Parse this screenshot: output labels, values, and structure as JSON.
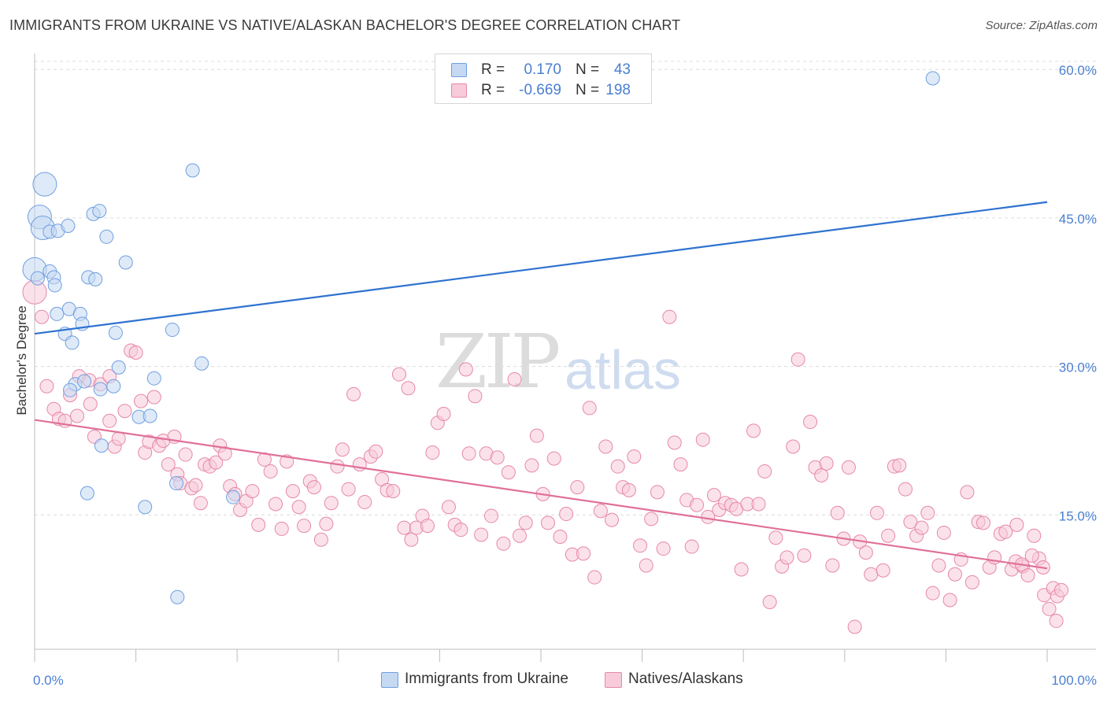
{
  "title": "IMMIGRANTS FROM UKRAINE VS NATIVE/ALASKAN BACHELOR'S DEGREE CORRELATION CHART",
  "source": "Source: ZipAtlas.com",
  "watermark": {
    "zip": "ZIP",
    "atlas": "atlas"
  },
  "legend": {
    "rows": [
      {
        "r_label": "R =",
        "r_value": "0.170",
        "n_label": "N =",
        "n_value": "43",
        "color": "#a9c6ec"
      },
      {
        "r_label": "R =",
        "r_value": "-0.669",
        "n_label": "N = ",
        "n_value": "198",
        "color": "#f4b6ca"
      }
    ]
  },
  "bottom_legend": [
    {
      "label": "Immigrants from Ukraine",
      "color": "#a9c6ec"
    },
    {
      "label": "Natives/Alaskans",
      "color": "#f4b6ca"
    }
  ],
  "chart_data": {
    "type": "scatter",
    "xlabel": "",
    "ylabel": "Bachelor's Degree",
    "xlim": [
      0,
      100
    ],
    "ylim": [
      0,
      65
    ],
    "x_tick_labels": [
      "0.0%",
      "100.0%"
    ],
    "y_ticks": [
      15,
      30,
      45,
      60
    ],
    "y_tick_labels": [
      "15.0%",
      "30.0%",
      "45.0%",
      "60.0%"
    ],
    "grid": "horizontal dashed",
    "legend_position": "top-center",
    "series": [
      {
        "name": "Immigrants from Ukraine",
        "color": "#6f9fe0",
        "fill": "#c5d9f3",
        "trend": {
          "x": [
            0,
            100
          ],
          "y": [
            33.3,
            46.6
          ]
        },
        "points": [
          [
            0,
            39.8
          ],
          [
            0.5,
            45.1
          ],
          [
            1,
            48.4
          ],
          [
            0.8,
            44.0
          ],
          [
            1.5,
            43.6
          ],
          [
            2.3,
            43.7
          ],
          [
            3.3,
            44.2
          ],
          [
            1.5,
            39.6
          ],
          [
            1.9,
            39.0
          ],
          [
            2,
            38.2
          ],
          [
            3.4,
            35.8
          ],
          [
            2.2,
            35.3
          ],
          [
            4.5,
            35.3
          ],
          [
            4.7,
            34.3
          ],
          [
            3,
            33.3
          ],
          [
            3.7,
            32.4
          ],
          [
            5.3,
            39.0
          ],
          [
            6,
            38.8
          ],
          [
            5.8,
            45.4
          ],
          [
            6.4,
            45.7
          ],
          [
            7.1,
            43.1
          ],
          [
            9,
            40.5
          ],
          [
            15.6,
            49.8
          ],
          [
            8,
            33.4
          ],
          [
            13.6,
            33.7
          ],
          [
            8.3,
            29.9
          ],
          [
            4,
            28.2
          ],
          [
            4.9,
            28.5
          ],
          [
            3.5,
            27.6
          ],
          [
            6.5,
            27.7
          ],
          [
            7.8,
            28.0
          ],
          [
            16.5,
            30.3
          ],
          [
            11.8,
            28.8
          ],
          [
            10.3,
            24.9
          ],
          [
            11.4,
            25.0
          ],
          [
            6.6,
            22.0
          ],
          [
            5.2,
            17.2
          ],
          [
            14,
            18.2
          ],
          [
            19.6,
            16.8
          ],
          [
            10.9,
            15.8
          ],
          [
            14.1,
            6.7
          ],
          [
            88.7,
            59.1
          ],
          [
            0.3,
            38.9
          ]
        ]
      },
      {
        "name": "Natives/Alaskans",
        "color": "#e688a8",
        "fill": "#f7cbd9",
        "trend": {
          "x": [
            0,
            100
          ],
          "y": [
            24.6,
            9.6
          ]
        },
        "points": [
          [
            0,
            37.5
          ],
          [
            0.7,
            35.0
          ],
          [
            1.2,
            28.0
          ],
          [
            1.9,
            25.7
          ],
          [
            2.4,
            24.7
          ],
          [
            3,
            24.5
          ],
          [
            3.5,
            27.1
          ],
          [
            4.2,
            25.0
          ],
          [
            4.4,
            29.0
          ],
          [
            5.4,
            28.6
          ],
          [
            5.5,
            26.2
          ],
          [
            5.9,
            22.9
          ],
          [
            6.5,
            28.2
          ],
          [
            7.4,
            24.5
          ],
          [
            7.4,
            29.0
          ],
          [
            7.9,
            21.9
          ],
          [
            8.3,
            22.7
          ],
          [
            8.9,
            25.5
          ],
          [
            9.5,
            31.6
          ],
          [
            10,
            31.4
          ],
          [
            10.5,
            26.5
          ],
          [
            10.9,
            21.3
          ],
          [
            11.3,
            22.4
          ],
          [
            11.8,
            26.9
          ],
          [
            12.3,
            22.0
          ],
          [
            12.7,
            22.5
          ],
          [
            13.2,
            20.1
          ],
          [
            13.8,
            22.9
          ],
          [
            14.1,
            19.1
          ],
          [
            14.4,
            18.2
          ],
          [
            14.9,
            21.1
          ],
          [
            15.5,
            17.7
          ],
          [
            15.9,
            18.0
          ],
          [
            16.4,
            16.2
          ],
          [
            16.8,
            20.1
          ],
          [
            17.3,
            19.9
          ],
          [
            17.9,
            20.3
          ],
          [
            18.3,
            22.0
          ],
          [
            18.8,
            21.2
          ],
          [
            19.3,
            17.9
          ],
          [
            19.8,
            17.1
          ],
          [
            20.3,
            15.5
          ],
          [
            20.9,
            16.4
          ],
          [
            21.5,
            17.4
          ],
          [
            22.1,
            14.0
          ],
          [
            22.7,
            20.6
          ],
          [
            23.3,
            19.4
          ],
          [
            23.8,
            16.1
          ],
          [
            24.4,
            13.6
          ],
          [
            24.9,
            20.4
          ],
          [
            25.5,
            17.4
          ],
          [
            26.1,
            15.8
          ],
          [
            26.6,
            13.9
          ],
          [
            27.2,
            18.4
          ],
          [
            27.6,
            17.8
          ],
          [
            28.3,
            12.5
          ],
          [
            28.8,
            14.1
          ],
          [
            29.3,
            16.2
          ],
          [
            29.9,
            19.9
          ],
          [
            30.4,
            21.6
          ],
          [
            31,
            17.6
          ],
          [
            31.5,
            27.2
          ],
          [
            32.1,
            20.1
          ],
          [
            32.6,
            16.3
          ],
          [
            33.2,
            20.9
          ],
          [
            33.7,
            21.4
          ],
          [
            34.3,
            18.6
          ],
          [
            34.8,
            17.5
          ],
          [
            35.4,
            17.4
          ],
          [
            36,
            29.2
          ],
          [
            36.5,
            13.7
          ],
          [
            36.9,
            27.8
          ],
          [
            37.2,
            12.5
          ],
          [
            37.7,
            13.7
          ],
          [
            38.3,
            14.9
          ],
          [
            38.8,
            13.9
          ],
          [
            39.3,
            21.3
          ],
          [
            39.8,
            24.3
          ],
          [
            40.4,
            25.2
          ],
          [
            40.9,
            15.8
          ],
          [
            41.5,
            14.0
          ],
          [
            42.1,
            13.5
          ],
          [
            42.6,
            29.7
          ],
          [
            42.9,
            21.2
          ],
          [
            43.5,
            27.0
          ],
          [
            44.1,
            13.0
          ],
          [
            44.6,
            21.2
          ],
          [
            45.1,
            14.9
          ],
          [
            45.7,
            20.8
          ],
          [
            46.3,
            12.1
          ],
          [
            46.8,
            19.3
          ],
          [
            47.4,
            28.7
          ],
          [
            47.9,
            12.9
          ],
          [
            48.5,
            14.2
          ],
          [
            49.1,
            20.0
          ],
          [
            49.6,
            23.0
          ],
          [
            50.2,
            17.1
          ],
          [
            50.7,
            14.2
          ],
          [
            51.3,
            20.7
          ],
          [
            51.9,
            12.8
          ],
          [
            52.5,
            15.1
          ],
          [
            53.1,
            11.0
          ],
          [
            53.6,
            17.8
          ],
          [
            54.2,
            11.1
          ],
          [
            54.8,
            25.8
          ],
          [
            55.3,
            8.7
          ],
          [
            55.9,
            15.4
          ],
          [
            56.4,
            21.9
          ],
          [
            57,
            14.5
          ],
          [
            57.6,
            19.9
          ],
          [
            58.1,
            17.8
          ],
          [
            58.7,
            17.5
          ],
          [
            59.2,
            20.9
          ],
          [
            59.8,
            11.9
          ],
          [
            60.4,
            9.9
          ],
          [
            60.9,
            14.6
          ],
          [
            61.5,
            17.3
          ],
          [
            62.1,
            11.6
          ],
          [
            62.7,
            35.0
          ],
          [
            63.2,
            22.3
          ],
          [
            63.8,
            20.1
          ],
          [
            64.4,
            16.5
          ],
          [
            64.9,
            11.8
          ],
          [
            65.4,
            16.0
          ],
          [
            66,
            22.6
          ],
          [
            66.5,
            14.8
          ],
          [
            67.1,
            17.0
          ],
          [
            67.6,
            15.5
          ],
          [
            68.2,
            16.2
          ],
          [
            68.8,
            16.0
          ],
          [
            69.3,
            15.6
          ],
          [
            69.8,
            9.5
          ],
          [
            70.4,
            16.1
          ],
          [
            71,
            23.5
          ],
          [
            71.5,
            16.1
          ],
          [
            72.1,
            19.4
          ],
          [
            72.6,
            6.2
          ],
          [
            73.2,
            12.7
          ],
          [
            73.8,
            9.8
          ],
          [
            74.3,
            10.7
          ],
          [
            74.9,
            21.9
          ],
          [
            75.4,
            30.7
          ],
          [
            76,
            10.9
          ],
          [
            76.6,
            24.4
          ],
          [
            77.1,
            19.8
          ],
          [
            77.7,
            19.0
          ],
          [
            78.2,
            20.2
          ],
          [
            78.8,
            9.9
          ],
          [
            79.3,
            15.2
          ],
          [
            79.9,
            12.6
          ],
          [
            80.4,
            19.8
          ],
          [
            81,
            3.7
          ],
          [
            81.5,
            12.3
          ],
          [
            82.1,
            11.2
          ],
          [
            82.6,
            9.0
          ],
          [
            83.2,
            15.2
          ],
          [
            83.8,
            9.4
          ],
          [
            84.3,
            12.9
          ],
          [
            84.9,
            19.9
          ],
          [
            85.4,
            20.0
          ],
          [
            86,
            17.6
          ],
          [
            86.5,
            14.3
          ],
          [
            87.1,
            12.9
          ],
          [
            87.6,
            13.7
          ],
          [
            88.2,
            15.2
          ],
          [
            88.7,
            7.1
          ],
          [
            89.3,
            9.9
          ],
          [
            89.8,
            13.2
          ],
          [
            90.4,
            6.4
          ],
          [
            90.9,
            9.0
          ],
          [
            91.5,
            10.5
          ],
          [
            92.1,
            17.3
          ],
          [
            92.6,
            8.2
          ],
          [
            93.2,
            14.3
          ],
          [
            93.7,
            14.2
          ],
          [
            94.3,
            9.7
          ],
          [
            94.8,
            10.7
          ],
          [
            95.4,
            13.1
          ],
          [
            95.9,
            13.3
          ],
          [
            96.5,
            9.5
          ],
          [
            97,
            14.0
          ],
          [
            97.6,
            9.8
          ],
          [
            98.1,
            8.9
          ],
          [
            98.7,
            12.9
          ],
          [
            99.2,
            10.6
          ],
          [
            96.9,
            10.3
          ],
          [
            97.5,
            10.0
          ],
          [
            98.5,
            10.9
          ],
          [
            99.6,
            9.7
          ],
          [
            99.7,
            6.9
          ],
          [
            100.2,
            5.5
          ],
          [
            100.6,
            7.6
          ],
          [
            101,
            6.8
          ],
          [
            101.4,
            7.4
          ],
          [
            100.9,
            4.3
          ]
        ]
      }
    ]
  }
}
